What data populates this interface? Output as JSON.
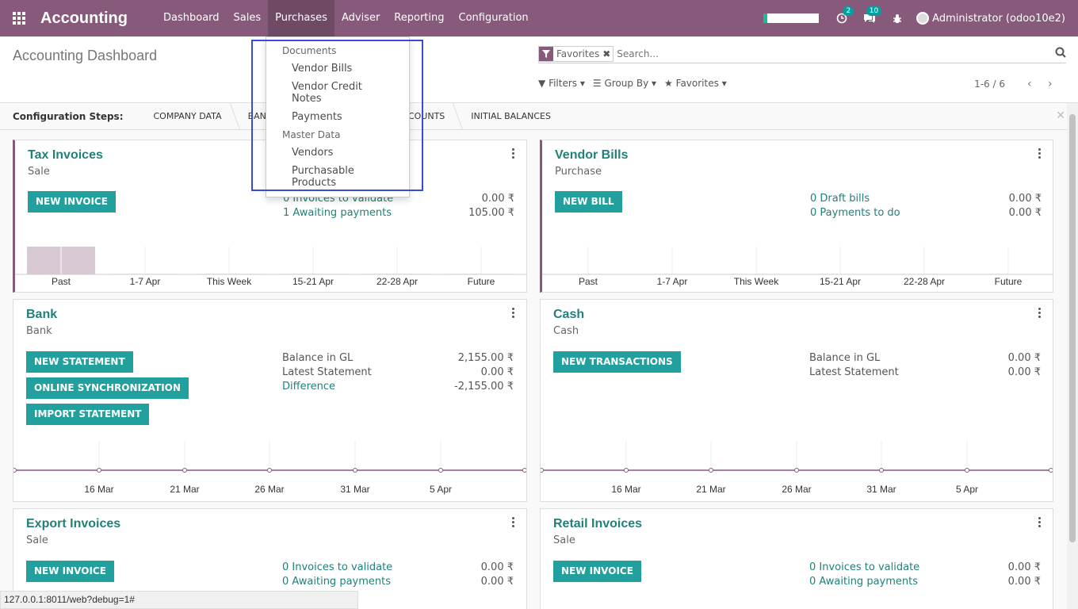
{
  "navbar": {
    "brand": "Accounting",
    "menu": [
      "Dashboard",
      "Sales",
      "Purchases",
      "Adviser",
      "Reporting",
      "Configuration"
    ],
    "activity_badge": "2",
    "messages_badge": "10",
    "user": "Administrator (odoo10e2)"
  },
  "control": {
    "title": "Accounting Dashboard",
    "facet_value": "Favorites",
    "search_placeholder": "Search...",
    "filters": "Filters",
    "group_by": "Group By",
    "favorites": "Favorites",
    "pager": "1-6 / 6"
  },
  "steps": {
    "label": "Configuration Steps:",
    "items": [
      "COMPANY DATA",
      "BANK ACCOUNTS",
      "CHART OF ACCOUNTS",
      "INITIAL BALANCES"
    ]
  },
  "dropdown": {
    "sections": [
      {
        "header": "Documents",
        "items": [
          "Vendor Bills",
          "Vendor Credit Notes",
          "Payments"
        ]
      },
      {
        "header": "Master Data",
        "items": [
          "Vendors",
          "Purchasable Products"
        ]
      }
    ]
  },
  "cards": {
    "tax": {
      "title": "Tax Invoices",
      "type": "Sale",
      "button": "NEW INVOICE",
      "stats": [
        {
          "label": "0 Invoices to validate",
          "value": "0.00 ₹"
        },
        {
          "label": "1 Awaiting payments",
          "value": "105.00 ₹"
        }
      ],
      "bars": [
        "Past",
        "1-7 Apr",
        "This Week",
        "15-21 Apr",
        "22-28 Apr",
        "Future"
      ]
    },
    "vendor": {
      "title": "Vendor Bills",
      "type": "Purchase",
      "button": "NEW BILL",
      "stats": [
        {
          "label": "0 Draft bills",
          "value": "0.00 ₹"
        },
        {
          "label": "0 Payments to do",
          "value": "0.00 ₹"
        }
      ],
      "bars": [
        "Past",
        "1-7 Apr",
        "This Week",
        "15-21 Apr",
        "22-28 Apr",
        "Future"
      ]
    },
    "bank": {
      "title": "Bank",
      "type": "Bank",
      "buttons": [
        "NEW STATEMENT",
        "ONLINE SYNCHRONIZATION",
        "IMPORT STATEMENT"
      ],
      "stats": [
        {
          "label": "Balance in GL",
          "value": "2,155.00 ₹"
        },
        {
          "label": "Latest Statement",
          "value": "0.00 ₹"
        },
        {
          "label": "Difference",
          "value": "-2,155.00 ₹"
        }
      ],
      "dates": [
        "16 Mar",
        "21 Mar",
        "26 Mar",
        "31 Mar",
        "5 Apr"
      ]
    },
    "cash": {
      "title": "Cash",
      "type": "Cash",
      "button": "NEW TRANSACTIONS",
      "stats": [
        {
          "label": "Balance in GL",
          "value": "0.00 ₹"
        },
        {
          "label": "Latest Statement",
          "value": "0.00 ₹"
        }
      ],
      "dates": [
        "16 Mar",
        "21 Mar",
        "26 Mar",
        "31 Mar",
        "5 Apr"
      ]
    },
    "export": {
      "title": "Export Invoices",
      "type": "Sale",
      "button": "NEW INVOICE",
      "stats": [
        {
          "label": "0 Invoices to validate",
          "value": "0.00 ₹"
        },
        {
          "label": "0 Awaiting payments",
          "value": "0.00 ₹"
        }
      ]
    },
    "retail": {
      "title": "Retail Invoices",
      "type": "Sale",
      "button": "NEW INVOICE",
      "stats": [
        {
          "label": "0 Invoices to validate",
          "value": "0.00 ₹"
        },
        {
          "label": "0 Awaiting payments",
          "value": "0.00 ₹"
        }
      ]
    }
  },
  "status_url": "127.0.0.1:8011/web?debug=1#",
  "colors": {
    "brand": "#875a7b",
    "accent": "#21a09d",
    "link": "#21807b"
  }
}
